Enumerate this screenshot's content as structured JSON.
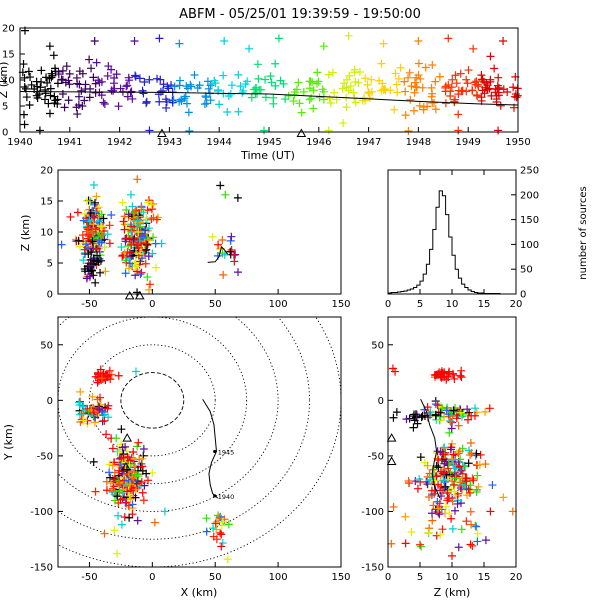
{
  "chart_data": [
    {
      "id": "time_height",
      "type": "scatter",
      "title": "ABFM - 05/25/01 19:39:59 - 19:50:00",
      "xlabel": "Time (UT)",
      "ylabel": "Z (km)",
      "xlim": [
        1940,
        1950
      ],
      "ylim": [
        0,
        20
      ],
      "x_ticks": [
        "1940",
        "1941",
        "1942",
        "1943",
        "1944",
        "1945",
        "1946",
        "1947",
        "1948",
        "1949",
        "1950"
      ],
      "y_ticks": [
        0,
        5,
        10,
        15,
        20
      ],
      "color_by": "time",
      "clusters": [
        {
          "t": 1940.2,
          "z": 8,
          "spread": [
            0.35,
            2.5
          ],
          "n": 45
        },
        {
          "t": 1940.9,
          "z": 8.5,
          "spread": [
            0.35,
            2.5
          ],
          "n": 40
        },
        {
          "t": 1941.8,
          "z": 8.5,
          "spread": [
            0.35,
            2.5
          ],
          "n": 40
        },
        {
          "t": 1942.9,
          "z": 8,
          "spread": [
            0.4,
            2
          ],
          "n": 30
        },
        {
          "t": 1943.8,
          "z": 8,
          "spread": [
            0.4,
            2
          ],
          "n": 30
        },
        {
          "t": 1944.8,
          "z": 8.5,
          "spread": [
            0.4,
            2
          ],
          "n": 30
        },
        {
          "t": 1945.9,
          "z": 8,
          "spread": [
            0.4,
            2
          ],
          "n": 30
        },
        {
          "t": 1946.9,
          "z": 8.5,
          "spread": [
            0.4,
            2
          ],
          "n": 35
        },
        {
          "t": 1947.9,
          "z": 8.5,
          "spread": [
            0.4,
            2
          ],
          "n": 35
        },
        {
          "t": 1948.9,
          "z": 8,
          "spread": [
            0.4,
            2
          ],
          "n": 40
        },
        {
          "t": 1949.6,
          "z": 8,
          "spread": [
            0.35,
            2
          ],
          "n": 40
        }
      ],
      "outliers": [
        {
          "t": 1940.1,
          "z": 19.5
        },
        {
          "t": 1940.6,
          "z": 16.5
        },
        {
          "t": 1941.5,
          "z": 17.5
        },
        {
          "t": 1942.3,
          "z": 17.5
        },
        {
          "t": 1942.8,
          "z": 18
        },
        {
          "t": 1943.2,
          "z": 17
        },
        {
          "t": 1944.1,
          "z": 17.5
        },
        {
          "t": 1944.6,
          "z": 16
        },
        {
          "t": 1945.2,
          "z": 18
        },
        {
          "t": 1946.1,
          "z": 16.5
        },
        {
          "t": 1946.6,
          "z": 18.5
        },
        {
          "t": 1947.3,
          "z": 17
        },
        {
          "t": 1948.0,
          "z": 17.5
        },
        {
          "t": 1948.6,
          "z": 18
        },
        {
          "t": 1949.1,
          "z": 16
        },
        {
          "t": 1949.7,
          "z": 17.5
        },
        {
          "t": 1940.4,
          "z": 0.3
        },
        {
          "t": 1942.6,
          "z": 0.3
        },
        {
          "t": 1943.4,
          "z": 0.2
        },
        {
          "t": 1944.9,
          "z": 0.3
        },
        {
          "t": 1946.2,
          "z": 0.3
        },
        {
          "t": 1947.8,
          "z": 0.2
        },
        {
          "t": 1948.8,
          "z": 0.3
        },
        {
          "t": 1949.6,
          "z": 0.3
        }
      ],
      "trend_line": [
        [
          1940,
          7.8
        ],
        [
          1943,
          7.6
        ],
        [
          1945,
          7.3
        ],
        [
          1946.5,
          6.6
        ],
        [
          1948,
          5.9
        ],
        [
          1949.2,
          5.4
        ],
        [
          1950,
          5.2
        ]
      ],
      "triangles": [
        {
          "t": 1942.85,
          "z": -0.3
        },
        {
          "t": 1945.65,
          "z": -0.3
        }
      ]
    },
    {
      "id": "x_height",
      "type": "scatter",
      "xlim": [
        -75,
        150
      ],
      "ylim": [
        0,
        20
      ],
      "ylabel": "Z (km)",
      "x_ticks": [
        -50,
        0,
        50,
        100,
        150
      ],
      "y_ticks": [
        0,
        5,
        10,
        15,
        20
      ],
      "clusters": [
        {
          "x": -48,
          "z": 10,
          "spread": [
            6,
            2.4
          ],
          "n": 160,
          "palette": "mixed"
        },
        {
          "x": -12,
          "z": 9,
          "spread": [
            7,
            3
          ],
          "n": 180,
          "palette": "mixed"
        },
        {
          "x": 58,
          "z": 7,
          "spread": [
            5,
            1.6
          ],
          "n": 18,
          "palette": "mixed"
        },
        {
          "x": -48,
          "z": 4.5,
          "spread": [
            3,
            1.2
          ],
          "n": 28,
          "palette": "black"
        }
      ],
      "outliers": [
        {
          "x": -12,
          "z": 18.5
        },
        {
          "x": 54,
          "z": 17.5
        },
        {
          "x": 58,
          "z": 16
        },
        {
          "x": 68,
          "z": 15.5
        },
        {
          "x": -17,
          "z": 16
        },
        {
          "x": -52,
          "z": 15
        }
      ],
      "track": [
        [
          44,
          5.1
        ],
        [
          50,
          5.2
        ],
        [
          53,
          6.0
        ],
        [
          55,
          7.6
        ],
        [
          57,
          7.2
        ],
        [
          60,
          6.4
        ]
      ],
      "triangles": [
        {
          "x": -18,
          "z": -0.3
        },
        {
          "x": -10,
          "z": -0.3
        }
      ]
    },
    {
      "id": "height_histogram",
      "type": "bar",
      "xlim": [
        0,
        20
      ],
      "ylim": [
        0,
        250
      ],
      "ylabel": "number of sources",
      "x_ticks": [
        0,
        5,
        10,
        15,
        20
      ],
      "y_ticks": [
        0,
        50,
        100,
        150,
        200,
        250
      ],
      "bin_start": 0,
      "bin_width": 0.5,
      "values": [
        2,
        3,
        3,
        4,
        5,
        6,
        8,
        10,
        13,
        18,
        26,
        40,
        60,
        90,
        130,
        175,
        208,
        198,
        160,
        115,
        78,
        50,
        32,
        20,
        13,
        8,
        5,
        3,
        2,
        2,
        1,
        1,
        1,
        1,
        1,
        0,
        0,
        0,
        0,
        0
      ]
    },
    {
      "id": "plan_view",
      "type": "scatter",
      "xlabel": "X (km)",
      "ylabel": "Y (km)",
      "xlim": [
        -75,
        150
      ],
      "ylim": [
        -150,
        75
      ],
      "x_ticks": [
        -50,
        0,
        50,
        100,
        150
      ],
      "y_ticks": [
        -150,
        -100,
        -50,
        0,
        50
      ],
      "range_rings_km": [
        25,
        50,
        75,
        100,
        125,
        150
      ],
      "solid_ring_km": 25,
      "clusters": [
        {
          "x": -38,
          "y": 22,
          "spread": [
            5,
            2.5
          ],
          "n": 28,
          "palette": "red"
        },
        {
          "x": -48,
          "y": -10,
          "spread": [
            6,
            5
          ],
          "n": 60,
          "palette": "mixed"
        },
        {
          "x": -20,
          "y": -70,
          "spread": [
            8,
            16
          ],
          "n": 190,
          "palette": "mixed"
        },
        {
          "x": 55,
          "y": -115,
          "spread": [
            5,
            10
          ],
          "n": 20,
          "palette": "mixed"
        }
      ],
      "outliers": [
        {
          "x": -13,
          "y": 26
        },
        {
          "x": -38,
          "y": -120
        },
        {
          "x": -28,
          "y": -138
        },
        {
          "x": 10,
          "y": -100
        },
        {
          "x": 2,
          "y": -110
        },
        {
          "x": 60,
          "y": -143
        }
      ],
      "track": [
        [
          40,
          1
        ],
        [
          46,
          -10
        ],
        [
          49,
          -22
        ],
        [
          50,
          -34
        ],
        [
          51,
          -46
        ],
        [
          47,
          -56
        ],
        [
          45,
          -66
        ],
        [
          46,
          -76
        ],
        [
          48,
          -84
        ],
        [
          52,
          -88
        ]
      ],
      "track_labels": [
        {
          "x": 52,
          "y": -46,
          "text": "1945"
        },
        {
          "x": 52,
          "y": -86,
          "text": "1940"
        }
      ],
      "triangles": [
        {
          "x": -20,
          "y": -34
        },
        {
          "x": -21,
          "y": -60
        }
      ]
    },
    {
      "id": "z_y",
      "type": "scatter",
      "xlabel": "Z (km)",
      "xlim": [
        0,
        20
      ],
      "ylim": [
        -150,
        75
      ],
      "x_ticks": [
        0,
        5,
        10,
        15,
        20
      ],
      "y_ticks": [
        -150,
        -100,
        -50,
        0,
        50
      ],
      "clusters": [
        {
          "z": 0.6,
          "y": 28,
          "spread": [
            0.3,
            2
          ],
          "n": 4,
          "palette": "red"
        },
        {
          "z": 8.5,
          "y": 22,
          "spread": [
            1.8,
            2
          ],
          "n": 28,
          "palette": "red"
        },
        {
          "z": 9.5,
          "y": -12,
          "spread": [
            2.2,
            5
          ],
          "n": 60,
          "palette": "mixed"
        },
        {
          "z": 4.5,
          "y": -12,
          "spread": [
            1.5,
            4
          ],
          "n": 18,
          "palette": "black"
        },
        {
          "z": 9.5,
          "y": -70,
          "spread": [
            2.6,
            15
          ],
          "n": 190,
          "palette": "mixed"
        },
        {
          "z": 8,
          "y": -112,
          "spread": [
            4,
            12
          ],
          "n": 30,
          "palette": "mixed"
        }
      ],
      "outliers": [
        {
          "z": 19.5,
          "y": -100
        },
        {
          "z": 10,
          "y": -140
        },
        {
          "z": 14,
          "y": -120
        },
        {
          "z": 16,
          "y": -100
        },
        {
          "z": 5,
          "y": -130
        }
      ],
      "track": [
        [
          5.1,
          1
        ],
        [
          6,
          -10
        ],
        [
          6.5,
          -22
        ],
        [
          7.3,
          -34
        ],
        [
          7.6,
          -46
        ],
        [
          7.2,
          -56
        ],
        [
          6.9,
          -66
        ],
        [
          7.2,
          -76
        ],
        [
          7.8,
          -84
        ],
        [
          8.1,
          -88
        ]
      ],
      "triangles": [
        {
          "z": 0.1,
          "y": -34
        },
        {
          "z": 0.1,
          "y": -55
        }
      ]
    }
  ]
}
